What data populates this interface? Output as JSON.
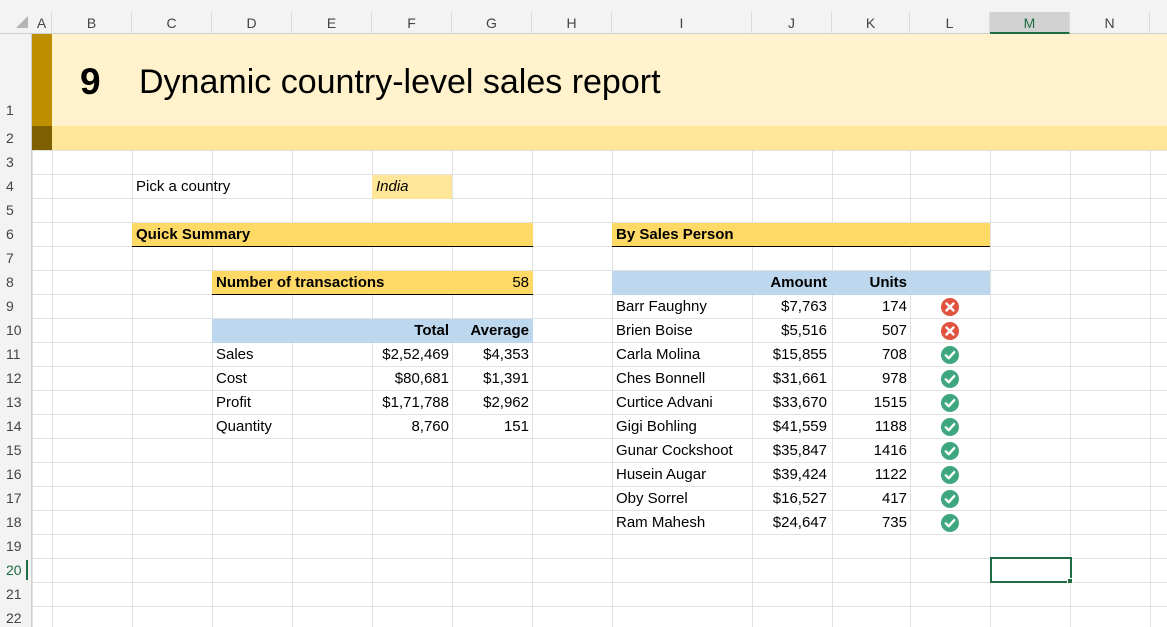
{
  "columns": [
    "A",
    "B",
    "C",
    "D",
    "E",
    "F",
    "G",
    "H",
    "I",
    "J",
    "K",
    "L",
    "M",
    "N"
  ],
  "selected_column": "M",
  "rows": [
    "1",
    "2",
    "3",
    "4",
    "5",
    "6",
    "7",
    "8",
    "9",
    "10",
    "11",
    "12",
    "13",
    "14",
    "15",
    "16",
    "17",
    "18",
    "19",
    "20",
    "21",
    "22"
  ],
  "selected_row": "20",
  "report": {
    "number": "9",
    "title": "Dynamic country-level sales report"
  },
  "picker": {
    "label": "Pick a country",
    "value": "India"
  },
  "quick_summary": {
    "heading": "Quick Summary",
    "transactions_label": "Number of transactions",
    "transactions_value": "58",
    "col_total": "Total",
    "col_average": "Average",
    "rows": [
      {
        "label": "Sales",
        "total": "$2,52,469",
        "average": "$4,353"
      },
      {
        "label": "Cost",
        "total": "$80,681",
        "average": "$1,391"
      },
      {
        "label": "Profit",
        "total": "$1,71,788",
        "average": "$2,962"
      },
      {
        "label": "Quantity",
        "total": "8,760",
        "average": "151"
      }
    ]
  },
  "by_sales_person": {
    "heading": "By Sales Person",
    "col_amount": "Amount",
    "col_units": "Units",
    "rows": [
      {
        "name": "Barr Faughny",
        "amount": "$7,763",
        "units": "174",
        "status": "bad"
      },
      {
        "name": "Brien Boise",
        "amount": "$5,516",
        "units": "507",
        "status": "bad"
      },
      {
        "name": "Carla Molina",
        "amount": "$15,855",
        "units": "708",
        "status": "good"
      },
      {
        "name": "Ches Bonnell",
        "amount": "$31,661",
        "units": "978",
        "status": "good"
      },
      {
        "name": "Curtice Advani",
        "amount": "$33,670",
        "units": "1515",
        "status": "good"
      },
      {
        "name": "Gigi Bohling",
        "amount": "$41,559",
        "units": "1188",
        "status": "good"
      },
      {
        "name": "Gunar Cockshoot",
        "amount": "$35,847",
        "units": "1416",
        "status": "good"
      },
      {
        "name": "Husein Augar",
        "amount": "$39,424",
        "units": "1122",
        "status": "good"
      },
      {
        "name": "Oby Sorrel",
        "amount": "$16,527",
        "units": "417",
        "status": "good"
      },
      {
        "name": "Ram Mahesh",
        "amount": "$24,647",
        "units": "735",
        "status": "good"
      }
    ]
  },
  "colors": {
    "title_band": "#fff2cc",
    "band_strip": "#ffe699",
    "accent_dark": "#bf8f00",
    "section_header": "#ffd966",
    "table_header": "#bdd7ee",
    "status_bad": "#e0533d",
    "status_good": "#3fa77f",
    "selection": "#1e6c41"
  },
  "icons": {
    "bad": "x-circle-icon",
    "good": "check-circle-icon"
  }
}
